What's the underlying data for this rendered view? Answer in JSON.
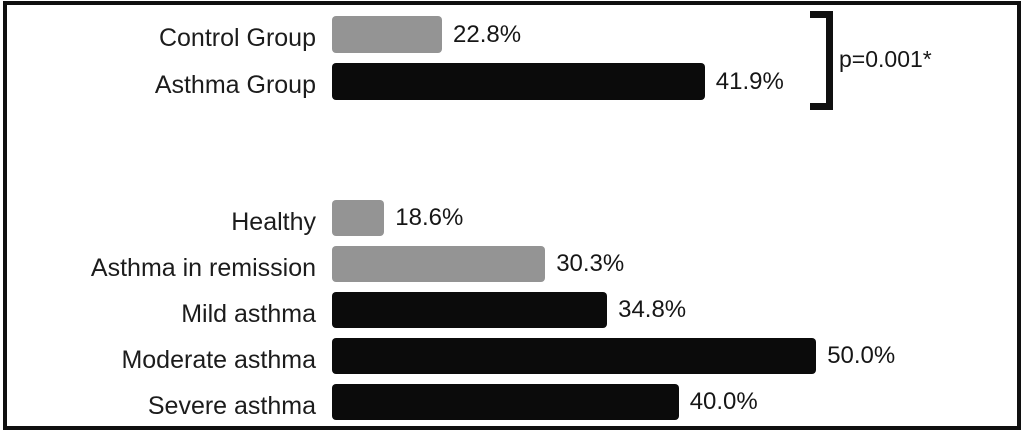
{
  "chart_data": {
    "type": "bar",
    "orientation": "horizontal",
    "unit": "%",
    "axis": {
      "xlim": [
        14.8,
        55.0
      ],
      "gridlines": false,
      "tick_labels_visible": false
    },
    "legend_visible": false,
    "colors": {
      "gray": "#949494",
      "black": "#0b0b0b"
    },
    "groups": [
      {
        "name": "overall-comparison",
        "bars": [
          {
            "label": "Control Group",
            "value": 22.8,
            "value_text": "22.8%",
            "color": "gray"
          },
          {
            "label": "Asthma Group",
            "value": 41.9,
            "value_text": "41.9%",
            "color": "black"
          }
        ]
      },
      {
        "name": "by-severity",
        "bars": [
          {
            "label": "Healthy",
            "value": 18.6,
            "value_text": "18.6%",
            "color": "gray"
          },
          {
            "label": "Asthma in remission",
            "value": 30.3,
            "value_text": "30.3%",
            "color": "gray"
          },
          {
            "label": "Mild asthma",
            "value": 34.8,
            "value_text": "34.8%",
            "color": "black"
          },
          {
            "label": "Moderate asthma",
            "value": 50.0,
            "value_text": "50.0%",
            "color": "black"
          },
          {
            "label": "Severe asthma",
            "value": 40.0,
            "value_text": "40.0%",
            "color": "black"
          }
        ]
      }
    ],
    "annotation": {
      "text": "p=0.001*",
      "applies_to": [
        "Control Group",
        "Asthma Group"
      ]
    }
  }
}
